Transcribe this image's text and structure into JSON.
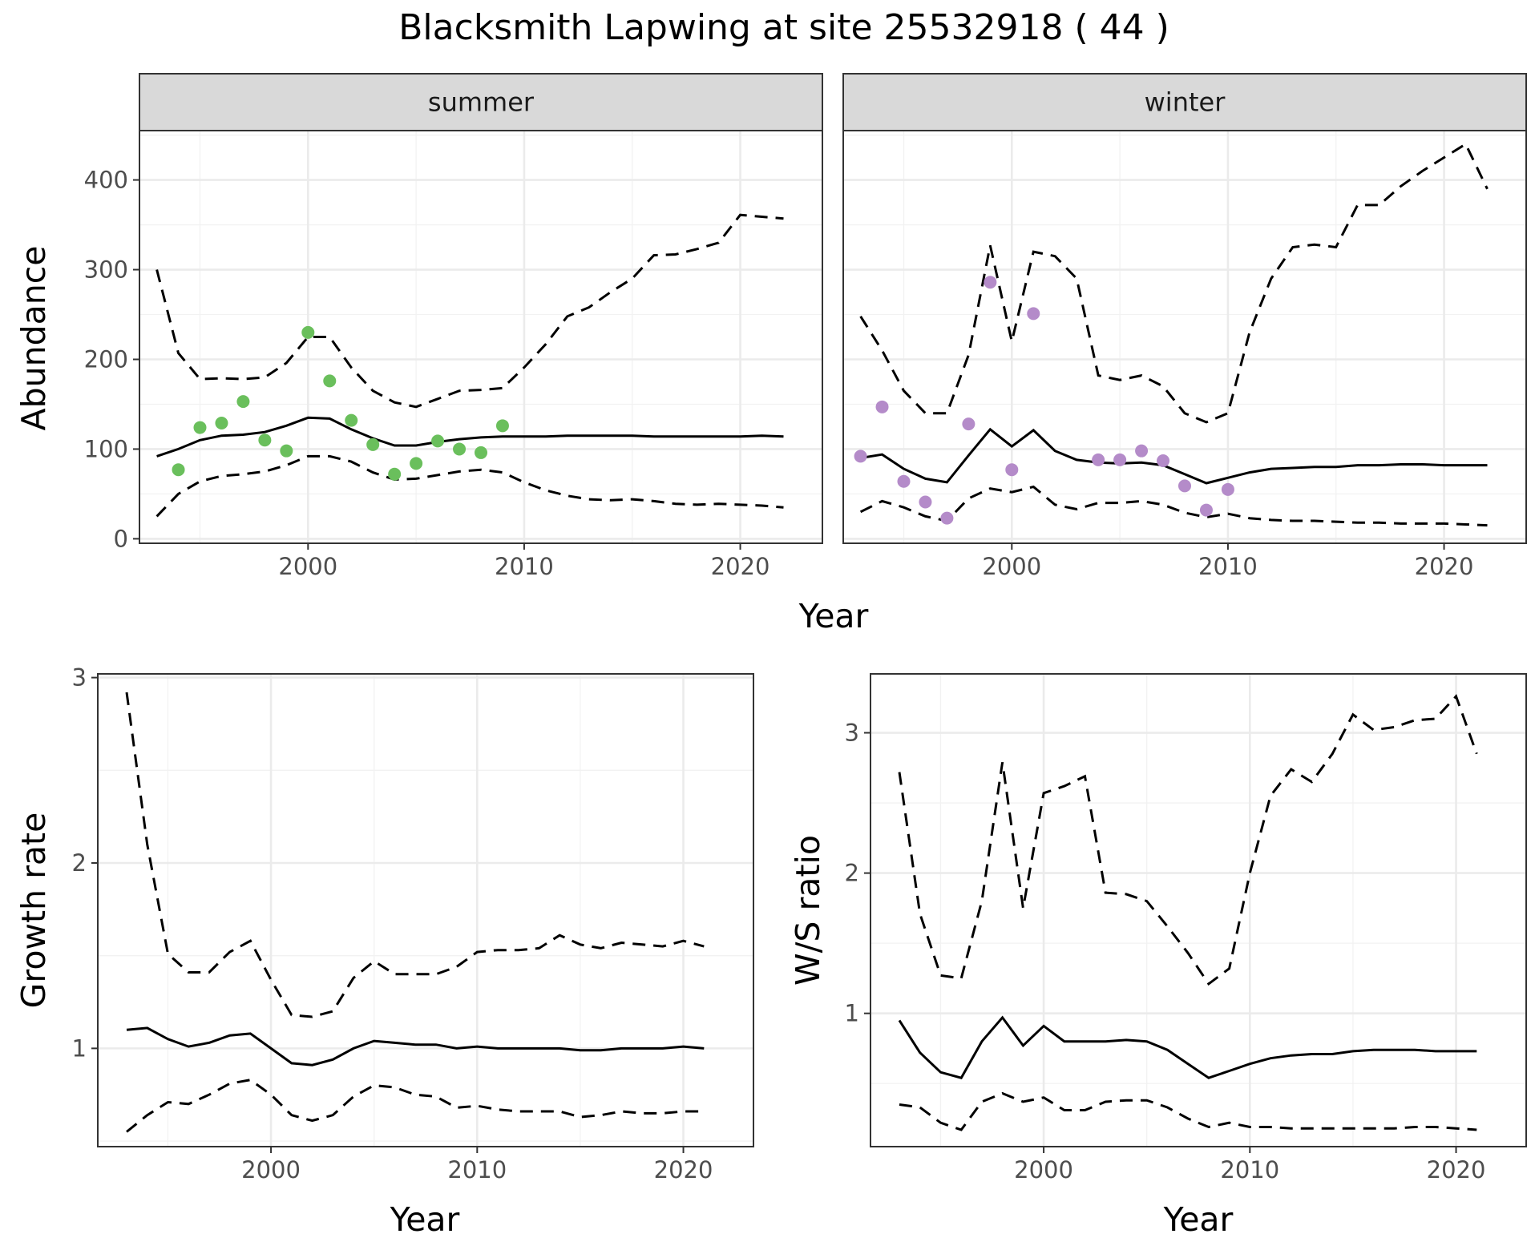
{
  "figure": {
    "title": "Blacksmith Lapwing at site 25532918 ( 44 )"
  },
  "chart_data": [
    {
      "id": "summer",
      "type": "line",
      "strip": "summer",
      "xlabel": "Year",
      "ylabel": "Abundance",
      "xlim": [
        1992.2,
        2023.8
      ],
      "ylim": [
        -5,
        455
      ],
      "xticks": [
        2000,
        2010,
        2020
      ],
      "yticks": [
        0,
        100,
        200,
        300,
        400
      ],
      "point_color": "#6abf5c",
      "x": [
        1993,
        1994,
        1995,
        1996,
        1997,
        1998,
        1999,
        2000,
        2001,
        2002,
        2003,
        2004,
        2005,
        2006,
        2007,
        2008,
        2009,
        2010,
        2011,
        2012,
        2013,
        2014,
        2015,
        2016,
        2017,
        2018,
        2019,
        2020,
        2021,
        2022
      ],
      "fit": [
        92,
        100,
        110,
        115,
        116,
        119,
        126,
        135,
        134,
        122,
        112,
        104,
        104,
        108,
        111,
        113,
        114,
        114,
        114,
        115,
        115,
        115,
        115,
        114,
        114,
        114,
        114,
        114,
        115,
        114
      ],
      "upper": [
        300,
        207,
        178,
        179,
        178,
        180,
        196,
        225,
        225,
        191,
        165,
        152,
        147,
        156,
        165,
        166,
        168,
        191,
        217,
        248,
        258,
        275,
        290,
        316,
        317,
        323,
        330,
        361,
        359,
        357
      ],
      "lower": [
        25,
        50,
        64,
        70,
        72,
        75,
        82,
        92,
        92,
        86,
        74,
        66,
        67,
        71,
        75,
        77,
        74,
        63,
        54,
        48,
        44,
        43,
        44,
        42,
        39,
        38,
        39,
        38,
        37,
        35
      ],
      "points": [
        {
          "x": 1994,
          "y": 77
        },
        {
          "x": 1995,
          "y": 124
        },
        {
          "x": 1996,
          "y": 129
        },
        {
          "x": 1997,
          "y": 153
        },
        {
          "x": 1998,
          "y": 110
        },
        {
          "x": 1999,
          "y": 98
        },
        {
          "x": 2000,
          "y": 230
        },
        {
          "x": 2001,
          "y": 176
        },
        {
          "x": 2002,
          "y": 132
        },
        {
          "x": 2003,
          "y": 105
        },
        {
          "x": 2004,
          "y": 72
        },
        {
          "x": 2005,
          "y": 84
        },
        {
          "x": 2006,
          "y": 109
        },
        {
          "x": 2007,
          "y": 100
        },
        {
          "x": 2008,
          "y": 96
        },
        {
          "x": 2009,
          "y": 126
        }
      ]
    },
    {
      "id": "winter",
      "type": "line",
      "strip": "winter",
      "xlabel": "Year",
      "ylabel": "",
      "xlim": [
        1992.2,
        2023.8
      ],
      "ylim": [
        -5,
        455
      ],
      "xticks": [
        2000,
        2010,
        2020
      ],
      "yticks": [
        0,
        100,
        200,
        300,
        400
      ],
      "point_color": "#b48bc9",
      "x": [
        1993,
        1994,
        1995,
        1996,
        1997,
        1998,
        1999,
        2000,
        2001,
        2002,
        2003,
        2004,
        2005,
        2006,
        2007,
        2008,
        2009,
        2010,
        2011,
        2012,
        2013,
        2014,
        2015,
        2016,
        2017,
        2018,
        2019,
        2020,
        2021,
        2022
      ],
      "fit": [
        90,
        94,
        78,
        67,
        63,
        93,
        122,
        103,
        121,
        98,
        88,
        85,
        84,
        85,
        82,
        72,
        62,
        68,
        74,
        78,
        79,
        80,
        80,
        82,
        82,
        83,
        83,
        82,
        82,
        82
      ],
      "upper": [
        248,
        210,
        165,
        140,
        140,
        205,
        327,
        220,
        320,
        315,
        290,
        182,
        177,
        182,
        170,
        140,
        130,
        140,
        230,
        290,
        325,
        328,
        325,
        372,
        372,
        393,
        410,
        425,
        440,
        390
      ],
      "lower": [
        30,
        42,
        35,
        25,
        20,
        45,
        56,
        52,
        58,
        38,
        33,
        40,
        40,
        42,
        38,
        29,
        24,
        28,
        23,
        21,
        20,
        20,
        19,
        18,
        18,
        17,
        17,
        17,
        16,
        15
      ],
      "points": [
        {
          "x": 1993,
          "y": 92
        },
        {
          "x": 1994,
          "y": 147
        },
        {
          "x": 1995,
          "y": 64
        },
        {
          "x": 1996,
          "y": 41
        },
        {
          "x": 1997,
          "y": 23
        },
        {
          "x": 1998,
          "y": 128
        },
        {
          "x": 1999,
          "y": 286
        },
        {
          "x": 2000,
          "y": 77
        },
        {
          "x": 2001,
          "y": 251
        },
        {
          "x": 2004,
          "y": 88
        },
        {
          "x": 2005,
          "y": 88
        },
        {
          "x": 2006,
          "y": 98
        },
        {
          "x": 2007,
          "y": 87
        },
        {
          "x": 2008,
          "y": 59
        },
        {
          "x": 2009,
          "y": 32
        },
        {
          "x": 2010,
          "y": 55
        }
      ]
    },
    {
      "id": "growth",
      "type": "line",
      "xlabel": "Year",
      "ylabel": "Growth rate",
      "xlim": [
        1991.6,
        2023.4
      ],
      "ylim": [
        0.47,
        3.02
      ],
      "xticks": [
        2000,
        2010,
        2020
      ],
      "yticks": [
        1,
        2,
        3
      ],
      "x": [
        1993,
        1994,
        1995,
        1996,
        1997,
        1998,
        1999,
        2000,
        2001,
        2002,
        2003,
        2004,
        2005,
        2006,
        2007,
        2008,
        2009,
        2010,
        2011,
        2012,
        2013,
        2014,
        2015,
        2016,
        2017,
        2018,
        2019,
        2020,
        2021
      ],
      "fit": [
        1.1,
        1.11,
        1.05,
        1.01,
        1.03,
        1.07,
        1.08,
        1.0,
        0.92,
        0.91,
        0.94,
        1.0,
        1.04,
        1.03,
        1.02,
        1.02,
        1.0,
        1.01,
        1.0,
        1.0,
        1.0,
        1.0,
        0.99,
        0.99,
        1.0,
        1.0,
        1.0,
        1.01,
        1.0
      ],
      "upper": [
        2.92,
        2.1,
        1.51,
        1.41,
        1.41,
        1.52,
        1.58,
        1.37,
        1.18,
        1.17,
        1.2,
        1.38,
        1.47,
        1.4,
        1.4,
        1.4,
        1.44,
        1.52,
        1.53,
        1.53,
        1.54,
        1.61,
        1.56,
        1.54,
        1.57,
        1.56,
        1.55,
        1.58,
        1.55
      ],
      "lower": [
        0.55,
        0.64,
        0.71,
        0.7,
        0.75,
        0.81,
        0.83,
        0.75,
        0.64,
        0.61,
        0.64,
        0.74,
        0.8,
        0.79,
        0.75,
        0.74,
        0.68,
        0.69,
        0.67,
        0.66,
        0.66,
        0.66,
        0.63,
        0.64,
        0.66,
        0.65,
        0.65,
        0.66,
        0.66
      ]
    },
    {
      "id": "ratio",
      "type": "line",
      "xlabel": "Year",
      "ylabel": "W/S ratio",
      "xlim": [
        1991.6,
        2023.4
      ],
      "ylim": [
        0.05,
        3.42
      ],
      "xticks": [
        2000,
        2010,
        2020
      ],
      "yticks": [
        1,
        2,
        3
      ],
      "x": [
        1993,
        1994,
        1995,
        1996,
        1997,
        1998,
        1999,
        2000,
        2001,
        2002,
        2003,
        2004,
        2005,
        2006,
        2007,
        2008,
        2009,
        2010,
        2011,
        2012,
        2013,
        2014,
        2015,
        2016,
        2017,
        2018,
        2019,
        2020,
        2021
      ],
      "fit": [
        0.95,
        0.72,
        0.58,
        0.54,
        0.8,
        0.97,
        0.77,
        0.91,
        0.8,
        0.8,
        0.8,
        0.81,
        0.8,
        0.74,
        0.64,
        0.54,
        0.59,
        0.64,
        0.68,
        0.7,
        0.71,
        0.71,
        0.73,
        0.74,
        0.74,
        0.74,
        0.73,
        0.73,
        0.73
      ],
      "upper": [
        2.72,
        1.71,
        1.27,
        1.25,
        1.8,
        2.79,
        1.75,
        2.57,
        2.62,
        2.69,
        1.86,
        1.85,
        1.8,
        1.62,
        1.43,
        1.21,
        1.32,
        2.0,
        2.55,
        2.74,
        2.65,
        2.85,
        3.13,
        3.02,
        3.04,
        3.09,
        3.1,
        3.26,
        2.85
      ],
      "lower": [
        0.35,
        0.33,
        0.22,
        0.17,
        0.37,
        0.43,
        0.37,
        0.4,
        0.31,
        0.31,
        0.37,
        0.38,
        0.38,
        0.33,
        0.25,
        0.19,
        0.22,
        0.19,
        0.19,
        0.18,
        0.18,
        0.18,
        0.18,
        0.18,
        0.18,
        0.19,
        0.19,
        0.18,
        0.17
      ]
    }
  ]
}
